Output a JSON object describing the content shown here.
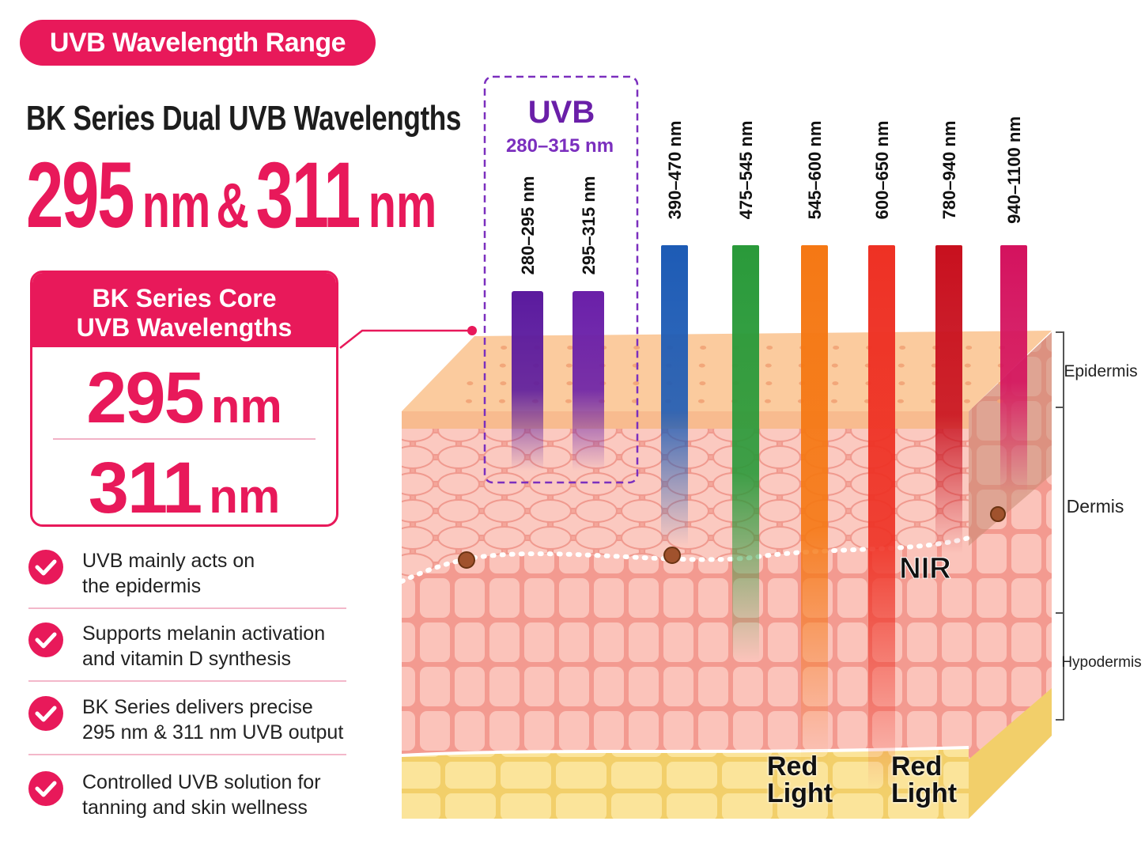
{
  "badge": "UVB Wavelength Range",
  "subtitle": "BK Series Dual UVB Wavelengths",
  "headline": {
    "value1": "295",
    "unit1": "nm",
    "joiner": "&",
    "value2": "311",
    "unit2": "nm"
  },
  "core_box": {
    "title_lines": [
      "BK Series Core",
      "UVB Wavelengths"
    ],
    "items": [
      {
        "value": "295",
        "unit": "nm"
      },
      {
        "value": "311",
        "unit": "nm"
      }
    ]
  },
  "bullets": [
    {
      "lines": [
        "UVB mainly acts on",
        "the epidermis"
      ]
    },
    {
      "lines": [
        "Supports melanin activation",
        "and vitamin D synthesis"
      ]
    },
    {
      "lines": [
        "BK Series delivers precise",
        "295 nm & 311 nm UVB output"
      ]
    },
    {
      "lines": [
        "Controlled UVB solution for",
        "tanning and skin wellness"
      ]
    }
  ],
  "uvb_group": {
    "label": "UVB",
    "range": "280–315 nm",
    "bands": [
      {
        "label": "280–295 nm",
        "color": "#5b1a9e"
      },
      {
        "label": "295–315 nm",
        "color": "#6a1fa8"
      }
    ]
  },
  "bands": [
    {
      "label": "390–470 nm",
      "color": "#1d5bb5"
    },
    {
      "label": "475–545 nm",
      "color": "#2a9a3a"
    },
    {
      "label": "545–600 nm",
      "color": "#f57814"
    },
    {
      "label": "600–650 nm",
      "color": "#ee3124"
    },
    {
      "label": "780–940 nm",
      "color": "#c8101e"
    },
    {
      "label": "940–1100 nm",
      "color": "#d4125e"
    }
  ],
  "layers": [
    "Epidermis",
    "Dermis",
    "Hypodermis"
  ],
  "annotations": {
    "nir": "NIR",
    "red_light_1": "Red Light",
    "red_light_2": "Red Light"
  }
}
